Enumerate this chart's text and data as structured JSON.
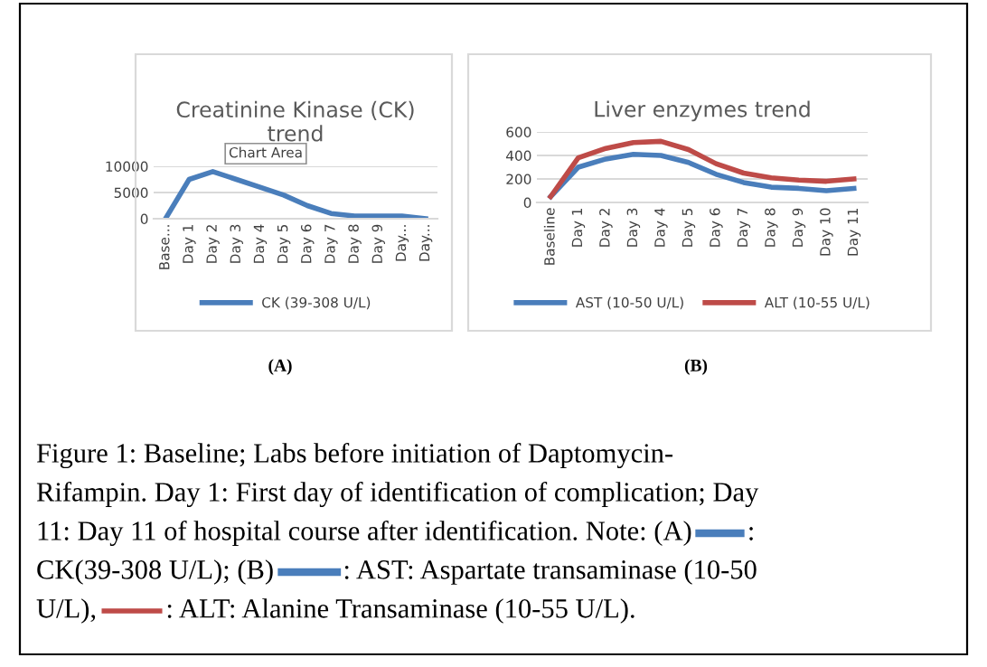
{
  "chart_data": [
    {
      "type": "line",
      "title": "Creatinine Kinase (CK)\ntrend",
      "categories": [
        "Base...",
        "Day 1",
        "Day 2",
        "Day 3",
        "Day 4",
        "Day 5",
        "Day 6",
        "Day 7",
        "Day 8",
        "Day 9",
        "Day...",
        "Day..."
      ],
      "series": [
        {
          "name": "CK (39-308 U/L)",
          "color": "#4a7ebb",
          "values": [
            0,
            7500,
            9000,
            7500,
            6000,
            4500,
            2500,
            1000,
            500,
            500,
            500,
            0
          ]
        }
      ],
      "ylim": [
        0,
        10000
      ],
      "yticks": [
        0,
        5000,
        10000
      ],
      "grid": "y",
      "legend": "bottom",
      "marker": "none",
      "annotations": [
        "Chart Area",
        "(A)"
      ]
    },
    {
      "type": "line",
      "title": "Liver enzymes trend",
      "categories": [
        "Baseline",
        "Day 1",
        "Day 2",
        "Day 3",
        "Day 4",
        "Day 5",
        "Day 6",
        "Day 7",
        "Day 8",
        "Day 9",
        "Day 10",
        "Day 11"
      ],
      "series": [
        {
          "name": "AST (10-50 U/L)",
          "color": "#4a7ebb",
          "values": [
            50,
            300,
            370,
            410,
            400,
            340,
            240,
            170,
            130,
            120,
            100,
            120
          ]
        },
        {
          "name": "ALT (10-55 U/L)",
          "color": "#be4b48",
          "values": [
            50,
            380,
            460,
            510,
            520,
            450,
            330,
            250,
            210,
            190,
            180,
            200
          ]
        }
      ],
      "ylim": [
        0,
        600
      ],
      "yticks": [
        0,
        200,
        400,
        600
      ],
      "grid": "y",
      "legend": "bottom",
      "marker": "none",
      "annotations": [
        "(B)",
        "Figure 1: Baseline; Labs before initiation of Daptomycin-",
        "Rifampin. Day 1: First day of identification of complication; Day",
        "11: Day 11 of hospital course after identification. Note: (A)        :",
        "CK(39-308 U/L); (B)          : AST: Aspartate transaminase (10-50",
        "U/L),          : ALT: Alanine Transaminase (10-55 U/L)."
      ]
    }
  ]
}
